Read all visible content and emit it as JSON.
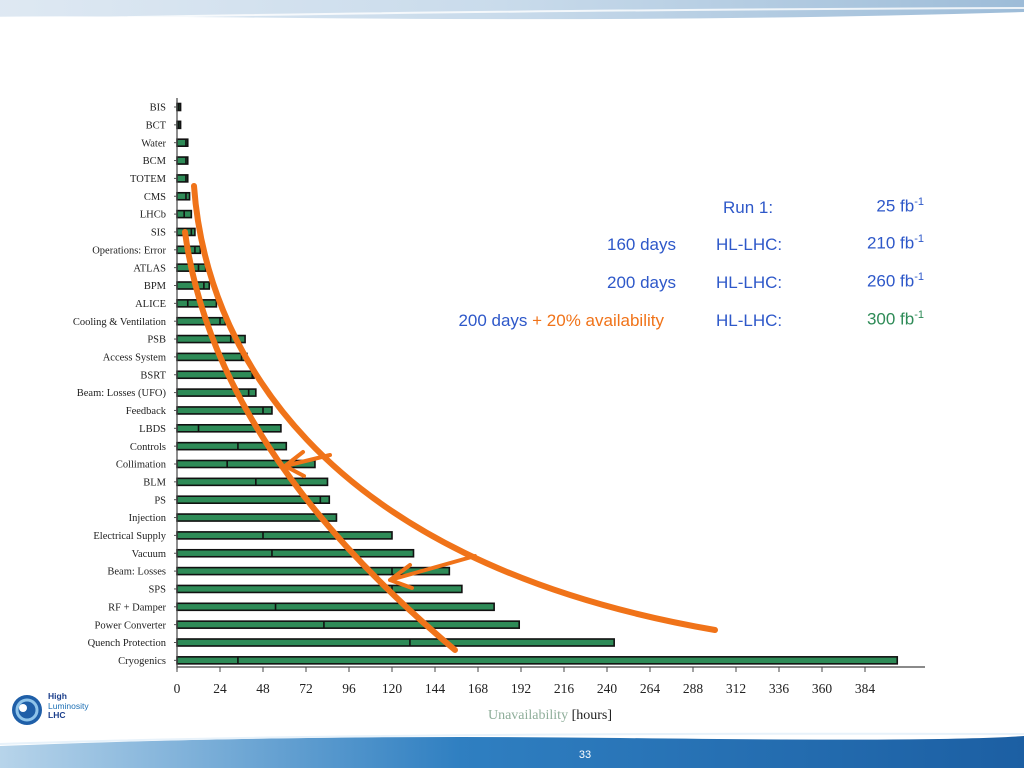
{
  "chart_data": {
    "type": "bar",
    "orientation": "horizontal",
    "categories": [
      "BIS",
      "BCT",
      "Water",
      "BCM",
      "TOTEM",
      "CMS",
      "LHCb",
      "SIS",
      "Operations: Error",
      "ATLAS",
      "BPM",
      "ALICE",
      "Cooling & Ventilation",
      "PSB",
      "Access System",
      "BSRT",
      "Beam: Losses (UFO)",
      "Feedback",
      "LBDS",
      "Controls",
      "Collimation",
      "BLM",
      "PS",
      "Injection",
      "Electrical Supply",
      "Vacuum",
      "Beam: Losses",
      "SPS",
      "RF + Damper",
      "Power Converter",
      "Quench Protection",
      "Cryogenics"
    ],
    "values": [
      2,
      2,
      6,
      6,
      6,
      7,
      8,
      10,
      13,
      16,
      18,
      22,
      27,
      38,
      39,
      43,
      44,
      53,
      58,
      61,
      77,
      84,
      85,
      89,
      120,
      132,
      152,
      159,
      177,
      191,
      244,
      402
    ],
    "markers": [
      1,
      1,
      5,
      5,
      5,
      5,
      4,
      8,
      10,
      12,
      15,
      6,
      24,
      30,
      36,
      42,
      40,
      48,
      12,
      34,
      28,
      44,
      80,
      80,
      48,
      53,
      120,
      120,
      55,
      82,
      130,
      34
    ],
    "xlabel_prefix": "Unavailability",
    "xlabel_suffix": "[hours]",
    "xticks": [
      0,
      24,
      48,
      72,
      96,
      120,
      144,
      168,
      192,
      216,
      240,
      264,
      288,
      312,
      336,
      360,
      384
    ],
    "xlim": [
      0,
      408
    ],
    "bar_color": "#2e8b57",
    "curve_color": "#f07319",
    "grid": false
  },
  "info": {
    "rows": [
      {
        "prefix": "",
        "prefix_extra": "",
        "machine": "Run 1:",
        "lumi": "25 fb",
        "exp": "-1",
        "lumi_class": ""
      },
      {
        "prefix": "160 days",
        "prefix_extra": "",
        "machine": "HL-LHC:",
        "lumi": "210 fb",
        "exp": "-1",
        "lumi_class": ""
      },
      {
        "prefix": "200 days",
        "prefix_extra": "",
        "machine": "HL-LHC:",
        "lumi": "260 fb",
        "exp": "-1",
        "lumi_class": ""
      },
      {
        "prefix": "200 days",
        "prefix_extra": "+ 20% availability",
        "machine": "HL-LHC:",
        "lumi": "300 fb",
        "exp": "-1",
        "lumi_class": "green"
      }
    ]
  },
  "logo": {
    "line1": "High",
    "line2": "Luminosity",
    "line3": "LHC"
  },
  "page_number": "33"
}
